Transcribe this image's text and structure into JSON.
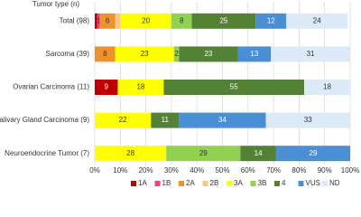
{
  "chart_data": {
    "type": "stacked-bar-horizontal",
    "title": "Tumor type (n)",
    "categories": [
      "Total (98)",
      "Sarcoma (39)",
      "Ovarian Carcinoma (11)",
      "Salivary Gland Carcinoma (9)",
      "Neuroendocrine Tumor (7)"
    ],
    "series": [
      {
        "name": "1A",
        "color": "#c00000",
        "values": [
          1,
          0,
          9,
          0,
          0
        ],
        "value_labels": [
          null,
          null,
          "9",
          null,
          null
        ]
      },
      {
        "name": "1B",
        "color": "#e8457c",
        "values": [
          1,
          0,
          0,
          0,
          0
        ],
        "value_labels": [
          "1",
          null,
          null,
          null,
          null
        ]
      },
      {
        "name": "2A",
        "color": "#f0922b",
        "values": [
          6,
          8,
          0,
          0,
          0
        ],
        "value_labels": [
          "6",
          "8",
          null,
          null,
          null
        ]
      },
      {
        "name": "2B",
        "color": "#f8c88a",
        "values": [
          2,
          0,
          0,
          0,
          0
        ],
        "value_labels": [
          null,
          null,
          null,
          null,
          null
        ]
      },
      {
        "name": "3A",
        "color": "#ffff00",
        "values": [
          20,
          23,
          18,
          22,
          28
        ],
        "value_labels": [
          "20",
          "23",
          "18",
          "22",
          "28"
        ]
      },
      {
        "name": "3B",
        "color": "#92d050",
        "values": [
          8,
          2,
          0,
          0,
          29
        ],
        "value_labels": [
          "8",
          "2",
          null,
          null,
          "29"
        ]
      },
      {
        "name": "4",
        "color": "#548235",
        "values": [
          25,
          23,
          55,
          11,
          14
        ],
        "value_labels": [
          "25",
          "23",
          "55",
          "11",
          "14"
        ]
      },
      {
        "name": "VUS",
        "color": "#4a8fd6",
        "values": [
          12,
          13,
          0,
          34,
          29
        ],
        "value_labels": [
          "12",
          "13",
          null,
          "34",
          "29"
        ]
      },
      {
        "name": "ND",
        "color": "#dce9f6",
        "values": [
          24,
          31,
          18,
          33,
          0
        ],
        "value_labels": [
          "24",
          "31",
          "18",
          "33",
          null
        ]
      }
    ],
    "xlim": [
      0,
      100
    ],
    "xticks": [
      {
        "value": 0,
        "label": "0%"
      },
      {
        "value": 10,
        "label": "10%"
      },
      {
        "value": 20,
        "label": "20%"
      },
      {
        "value": 30,
        "label": "30%"
      },
      {
        "value": 40,
        "label": "40%"
      },
      {
        "value": 50,
        "label": "50%"
      },
      {
        "value": 60,
        "label": "60%"
      },
      {
        "value": 70,
        "label": "70%"
      },
      {
        "value": 80,
        "label": "80%"
      },
      {
        "value": 90,
        "label": "90%"
      },
      {
        "value": 100,
        "label": "100%"
      }
    ],
    "grid": true,
    "legend": "bottom"
  }
}
